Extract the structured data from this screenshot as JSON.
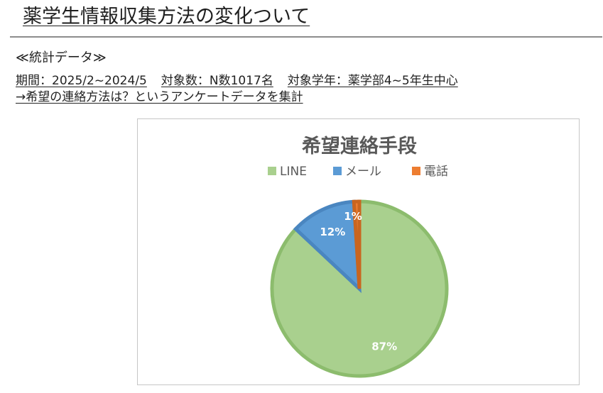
{
  "header": {
    "title": "薬学生情報収集方法の変化ついて"
  },
  "info": {
    "section_label": "≪統計データ≫",
    "period": "期間：2025/2~2024/5",
    "count": "対象数：N数1017名",
    "grade": "対象学年：薬学部4~5年生中心",
    "description": "→希望の連絡方法は？というアンケートデータを集計"
  },
  "chart_data": {
    "type": "pie",
    "title": "希望連絡手段",
    "categories": [
      "LINE",
      "メール",
      "電話"
    ],
    "values": [
      87,
      12,
      1
    ],
    "labels": [
      "87%",
      "12%",
      "1%"
    ],
    "colors": [
      "#a9d08e",
      "#5b9bd5",
      "#ed7d31"
    ],
    "edge_colors": [
      "#8cbc6d",
      "#4a86c0",
      "#c9651f"
    ],
    "legend_position": "top"
  }
}
